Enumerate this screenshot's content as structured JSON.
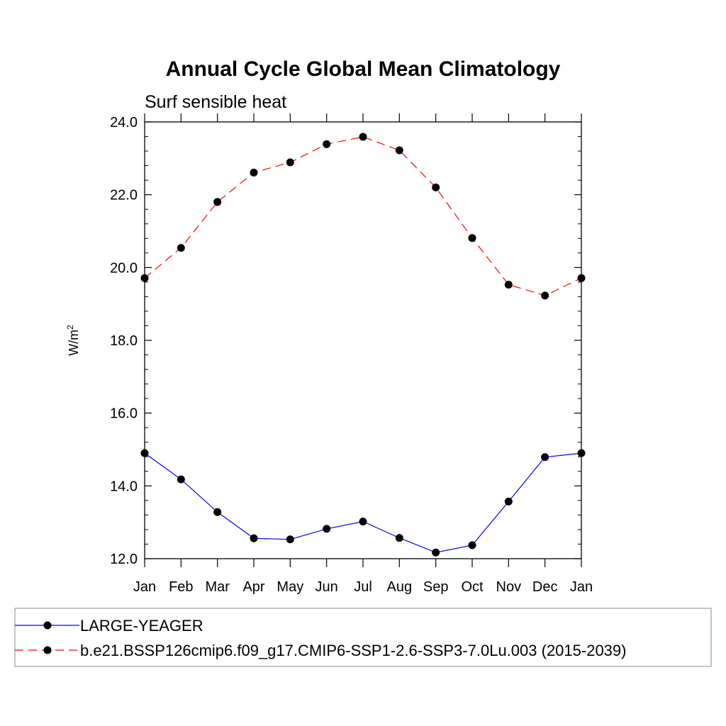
{
  "chart_data": {
    "type": "line",
    "title": "Annual Cycle Global Mean Climatology",
    "subtitle": "Surf sensible heat",
    "ylabel": "W/m",
    "ylabel_superscript": "2",
    "xlabel": "",
    "categories": [
      "Jan",
      "Feb",
      "Mar",
      "Apr",
      "May",
      "Jun",
      "Jul",
      "Aug",
      "Sep",
      "Oct",
      "Nov",
      "Dec",
      "Jan"
    ],
    "ylim": [
      12.0,
      24.0
    ],
    "yticks": [
      "12.0",
      "14.0",
      "16.0",
      "18.0",
      "20.0",
      "22.0",
      "24.0"
    ],
    "grid": false,
    "legend_position": "bottom",
    "series": [
      {
        "name": "LARGE-YEAGER",
        "color": "#0000ff",
        "line_style": "solid",
        "marker": "filled-circle",
        "values": [
          14.9,
          14.18,
          13.28,
          12.56,
          12.53,
          12.82,
          13.02,
          12.57,
          12.17,
          12.37,
          13.57,
          14.79,
          14.9
        ]
      },
      {
        "name": "b.e21.BSSP126cmip6.f09_g17.CMIP6-SSP1-2.6-SSP3-7.0Lu.003 (2015-2039)",
        "color": "#ff0000",
        "line_style": "dashed",
        "marker": "filled-circle",
        "values": [
          19.71,
          20.54,
          21.8,
          22.61,
          22.89,
          23.39,
          23.59,
          23.22,
          22.2,
          20.81,
          19.53,
          19.23,
          19.71
        ]
      }
    ]
  }
}
